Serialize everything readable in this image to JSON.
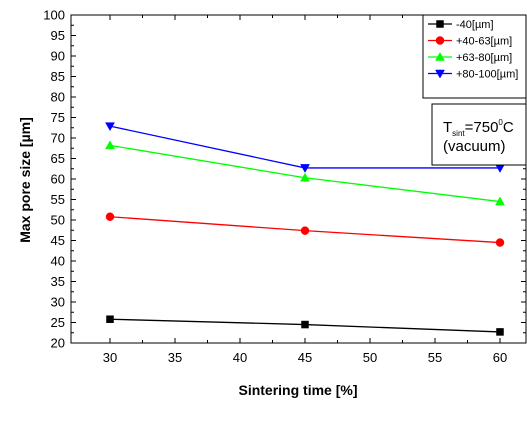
{
  "chart_data": {
    "type": "line",
    "xlabel": "Sintering time [%]",
    "ylabel": "Max  pore  size [µm]",
    "x": [
      30,
      45,
      60
    ],
    "xlim": [
      27,
      62
    ],
    "ylim": [
      20,
      100
    ],
    "xticks": [
      30,
      35,
      40,
      45,
      50,
      55,
      60
    ],
    "yticks": [
      20,
      25,
      30,
      35,
      40,
      45,
      50,
      55,
      60,
      65,
      70,
      75,
      80,
      85,
      90,
      95,
      100
    ],
    "grid": false,
    "legend_position": "top-right",
    "series": [
      {
        "name": "-40[µm]",
        "color": "#000000",
        "marker": "square",
        "values": [
          25.8,
          24.5,
          22.7
        ]
      },
      {
        "name": "+40-63[µm]",
        "color": "#ff0000",
        "marker": "circle",
        "values": [
          50.8,
          47.4,
          44.5
        ]
      },
      {
        "name": "+63-80[µm]",
        "color": "#00ff00",
        "marker": "triangle-up",
        "values": [
          68.2,
          60.3,
          54.5
        ]
      },
      {
        "name": "+80-100[µm]",
        "color": "#0000ff",
        "marker": "triangle-down",
        "values": [
          72.9,
          62.7,
          62.7
        ]
      }
    ],
    "annotation": {
      "text_T": "T",
      "text_sub": "sint",
      "text_eq": "=750",
      "text_sup": "0",
      "text_unit": "C",
      "text_line2": "(vacuum)"
    }
  }
}
